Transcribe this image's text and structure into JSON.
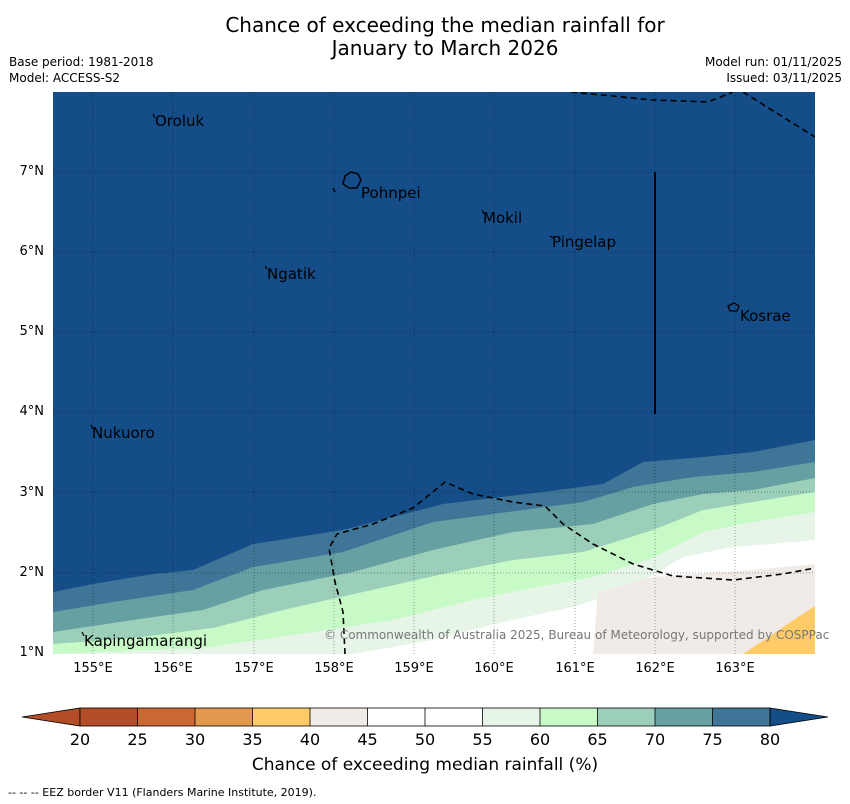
{
  "title_line1": "Chance of exceeding the median rainfall for",
  "title_line2": "January to March 2026",
  "meta_left": {
    "base_period": "Base period: 1981-2018",
    "model": "Model: ACCESS-S2"
  },
  "meta_right": {
    "model_run": "Model run: 01/11/2025",
    "issued": "Issued: 03/11/2025"
  },
  "map": {
    "lat_labels": [
      "7°N",
      "6°N",
      "5°N",
      "4°N",
      "3°N",
      "2°N",
      "1°N"
    ],
    "lon_labels": [
      "155°E",
      "156°E",
      "157°E",
      "158°E",
      "159°E",
      "160°E",
      "161°E",
      "162°E",
      "163°E"
    ],
    "islands": [
      "Oroluk",
      "Pohnpei",
      "Mokil",
      "Pingelap",
      "Ngatik",
      "Kosrae",
      "Nukuoro",
      "Kapingamarangi"
    ],
    "copyright": "© Commonwealth of Australia 2025, Bureau of Meteorology, supported by COSPPac",
    "colors": {
      "bg": "#144d87",
      "c75": "#3f7597",
      "c70": "#66a0a2",
      "c65": "#9ccfb9",
      "c60": "#c8fac8",
      "c55": "#e6f5e8",
      "c50": "#ffffff",
      "c40": "#f0ebe6",
      "c35": "#fecb66"
    }
  },
  "colorbar": {
    "title": "Chance of exceeding median rainfall (%)",
    "ticks": [
      "20",
      "25",
      "30",
      "35",
      "40",
      "45",
      "50",
      "55",
      "60",
      "65",
      "70",
      "75",
      "80"
    ],
    "colors": [
      "#b24d28",
      "#cc6633",
      "#e3994d",
      "#fecb66",
      "#f0ebe6",
      "#ffffff",
      "#ffffff",
      "#e6f5e8",
      "#c8fac8",
      "#9ccfb9",
      "#66a0a2",
      "#3f7597",
      "#144d87"
    ]
  },
  "footnote": "--  --  -- EEZ border V11 (Flanders Marine Institute, 2019)."
}
